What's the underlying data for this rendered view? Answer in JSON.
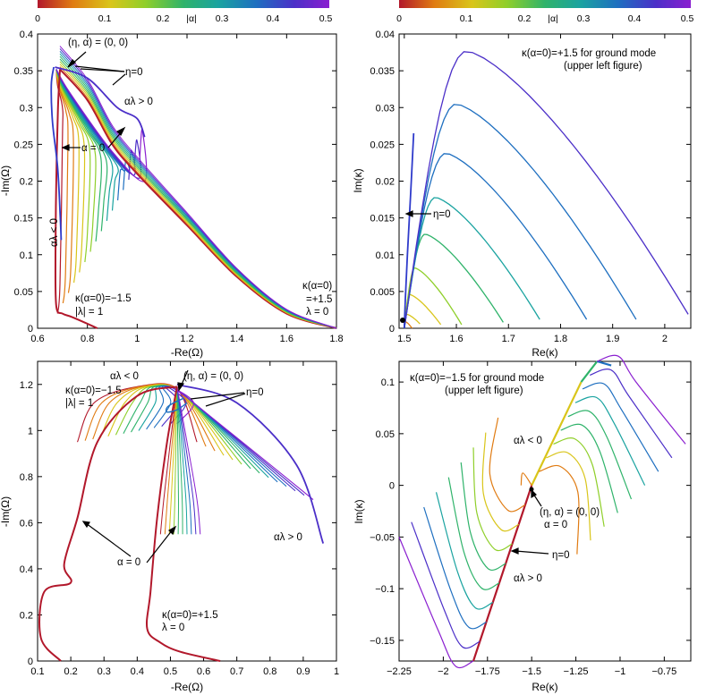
{
  "colorbar": {
    "label": "|α|",
    "ticks": [
      "0",
      "0.1",
      "0.2",
      "0.3",
      "0.4",
      "0.5"
    ],
    "colors": [
      "#b2182b",
      "#e07b12",
      "#d9c51a",
      "#8fcf2a",
      "#2fb36a",
      "#1aa3a0",
      "#1e6fc0",
      "#4b2fc8",
      "#8a1fd0"
    ]
  },
  "chart_data": [
    {
      "id": "top-left",
      "type": "line",
      "xlabel": "-Re(Ω)",
      "ylabel": "-Im(Ω)",
      "xlim": [
        0.6,
        1.8
      ],
      "ylim": [
        0,
        0.4
      ],
      "xticks": [
        "0.6",
        "0.8",
        "1",
        "1.2",
        "1.4",
        "1.6",
        "1.8"
      ],
      "yticks": [
        "0",
        "0.05",
        "0.1",
        "0.15",
        "0.2",
        "0.25",
        "0.3",
        "0.35",
        "0.4"
      ],
      "annotations": [
        {
          "text": "(η, α) = (0, 0)"
        },
        {
          "text": "η=0"
        },
        {
          "text": "αλ > 0"
        },
        {
          "text": "α = 0"
        },
        {
          "text": "αλ < 0"
        },
        {
          "text": "κ(α=0)=−1.5"
        },
        {
          "text": "|λ| = 1"
        },
        {
          "text": "κ(α=0)"
        },
        {
          "text": "=+1.5"
        },
        {
          "text": "λ = 0"
        }
      ],
      "series": [
        {
          "name": "|α|=0 (λ=0 branch)",
          "points": [
            [
              0.69,
              0.352
            ],
            [
              0.8,
              0.31
            ],
            [
              0.9,
              0.25
            ],
            [
              1.0,
              0.21
            ],
            [
              1.2,
              0.14
            ],
            [
              1.4,
              0.07
            ],
            [
              1.6,
              0.02
            ],
            [
              1.8,
              0.0
            ]
          ]
        },
        {
          "name": "|α|=0 (|λ|=1 branch)",
          "points": [
            [
              0.69,
              0.352
            ],
            [
              0.682,
              0.3
            ],
            [
              0.675,
              0.2
            ],
            [
              0.672,
              0.1
            ],
            [
              0.675,
              0.03
            ],
            [
              0.7,
              0.02
            ],
            [
              0.74,
              0.015
            ],
            [
              0.84,
              0.0
            ]
          ]
        },
        {
          "name": "|α|=0.5 (αλ>0)",
          "points": [
            [
              0.67,
              0.355
            ],
            [
              0.8,
              0.34
            ],
            [
              0.92,
              0.3
            ],
            [
              1.0,
              0.285
            ],
            [
              1.03,
              0.26
            ]
          ]
        }
      ]
    },
    {
      "id": "top-right",
      "type": "line",
      "xlabel": "Re(κ)",
      "ylabel": "Im(κ)",
      "xlim": [
        1.49,
        2.05
      ],
      "ylim": [
        0,
        0.04
      ],
      "xticks": [
        "1.5",
        "1.6",
        "1.7",
        "1.8",
        "1.9",
        "2"
      ],
      "yticks": [
        "0",
        "0.005",
        "0.01",
        "0.015",
        "0.02",
        "0.025",
        "0.03",
        "0.035",
        "0.04"
      ],
      "annotations": [
        {
          "text": "κ(α=0)=+1.5  for ground mode"
        },
        {
          "text": "(upper left figure)"
        },
        {
          "text": "η=0"
        }
      ],
      "series": [
        {
          "name": "|α|=0.05",
          "peak": [
            1.502,
            0.0009
          ],
          "end": [
            1.515,
            0.0
          ]
        },
        {
          "name": "|α|=0.10",
          "peak": [
            1.505,
            0.0019
          ],
          "end": [
            1.53,
            0.0006
          ]
        },
        {
          "name": "|α|=0.15",
          "peak": [
            1.51,
            0.0046
          ],
          "end": [
            1.57,
            0.0005
          ]
        },
        {
          "name": "|α|=0.20",
          "peak": [
            1.52,
            0.0082
          ],
          "end": [
            1.61,
            0.0005
          ]
        },
        {
          "name": "|α|=0.25",
          "peak": [
            1.54,
            0.0128
          ],
          "end": [
            1.69,
            0.0008
          ]
        },
        {
          "name": "|α|=0.30",
          "peak": [
            1.56,
            0.0178
          ],
          "end": [
            1.76,
            0.0012
          ]
        },
        {
          "name": "|α|=0.35",
          "peak": [
            1.58,
            0.0238
          ],
          "end": [
            1.85,
            0.0012
          ]
        },
        {
          "name": "|α|=0.40",
          "peak": [
            1.6,
            0.0305
          ],
          "end": [
            1.945,
            0.0012
          ]
        },
        {
          "name": "|α|=0.45",
          "peak": [
            1.62,
            0.0377
          ],
          "end": [
            2.045,
            0.0019
          ]
        }
      ]
    },
    {
      "id": "bottom-left",
      "type": "line",
      "xlabel": "-Re(Ω)",
      "ylabel": "-Im(Ω)",
      "xlim": [
        0.1,
        1.0
      ],
      "ylim": [
        0,
        1.3
      ],
      "xticks": [
        "0.1",
        "0.2",
        "0.3",
        "0.4",
        "0.5",
        "0.6",
        "0.7",
        "0.8",
        "0.9",
        "1"
      ],
      "yticks": [
        "0",
        "0.2",
        "0.4",
        "0.6",
        "0.8",
        "1",
        "1.2"
      ],
      "annotations": [
        {
          "text": "αλ < 0"
        },
        {
          "text": "(η, α) = (0, 0)"
        },
        {
          "text": "κ(α=0)=−1.5"
        },
        {
          "text": "|λ| = 1"
        },
        {
          "text": "η=0"
        },
        {
          "text": "α = 0"
        },
        {
          "text": "αλ > 0"
        },
        {
          "text": "κ(α=0)=+1.5"
        },
        {
          "text": "λ = 0"
        }
      ],
      "series": [
        {
          "name": "|α|=0 (λ=0 branch)",
          "points": [
            [
              0.52,
              1.19
            ],
            [
              0.49,
              0.95
            ],
            [
              0.46,
              0.62
            ],
            [
              0.44,
              0.3
            ],
            [
              0.43,
              0.14
            ],
            [
              0.47,
              0.08
            ],
            [
              0.53,
              0.04
            ],
            [
              0.65,
              0.0
            ]
          ]
        },
        {
          "name": "|α|=0 (|λ|=1 branch)",
          "points": [
            [
              0.52,
              1.19
            ],
            [
              0.4,
              1.15
            ],
            [
              0.28,
              0.95
            ],
            [
              0.22,
              0.62
            ],
            [
              0.18,
              0.42
            ],
            [
              0.2,
              0.34
            ],
            [
              0.12,
              0.3
            ],
            [
              0.11,
              0.1
            ],
            [
              0.17,
              0.0
            ]
          ]
        },
        {
          "name": "|α|=0.5 (αλ>0)",
          "points": [
            [
              0.52,
              1.2
            ],
            [
              0.7,
              1.12
            ],
            [
              0.88,
              0.85
            ],
            [
              0.96,
              0.51
            ]
          ]
        }
      ]
    },
    {
      "id": "bottom-right",
      "type": "line",
      "xlabel": "Re(κ)",
      "ylabel": "Im(κ)",
      "xlim": [
        -2.25,
        -0.6
      ],
      "ylim": [
        -0.17,
        0.12
      ],
      "xticks": [
        "−2.25",
        "−2",
        "−1.75",
        "−1.5",
        "−1.25",
        "−1",
        "−0.75"
      ],
      "yticks": [
        "−0.15",
        "−0.1",
        "−0.05",
        "0",
        "0.05",
        "0.1"
      ],
      "annotations": [
        {
          "text": "κ(α=0)=−1.5  for ground mode"
        },
        {
          "text": "(upper left figure)"
        },
        {
          "text": "αλ < 0"
        },
        {
          "text": "(η, α) = (0, 0)"
        },
        {
          "text": "α = 0"
        },
        {
          "text": "η=0"
        },
        {
          "text": "αλ > 0"
        }
      ],
      "series": [
        {
          "name": "η=0 backbone",
          "points": [
            [
              -1.83,
              -0.17
            ],
            [
              -1.5,
              0.0
            ],
            [
              -1.22,
              0.1
            ],
            [
              -1.13,
              0.12
            ],
            [
              -1.05,
              0.116
            ]
          ]
        },
        {
          "name": "|α|=0.5 (αλ<0)",
          "peak": [
            -1.13,
            0.12
          ],
          "end": [
            -0.63,
            0.052
          ]
        },
        {
          "name": "|α|=0.5 (αλ>0)",
          "peak": [
            -1.83,
            -0.17
          ],
          "end": [
            -2.25,
            -0.045
          ]
        }
      ]
    }
  ]
}
